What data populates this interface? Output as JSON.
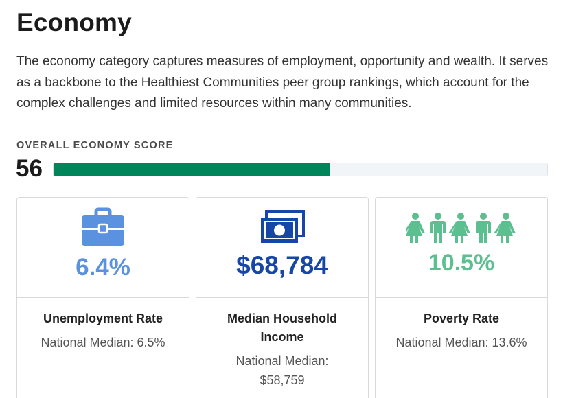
{
  "header": {
    "title": "Economy",
    "description": "The economy category captures measures of employment, opportunity and wealth. It serves as a backbone to the Healthiest Communities peer group rankings, which account for the complex challenges and limited resources within many communities."
  },
  "score": {
    "label": "OVERALL ECONOMY SCORE",
    "value": "56",
    "fraction": 0.56,
    "bar_color": "#00855a"
  },
  "cards": [
    {
      "icon": "briefcase-icon",
      "value": "6.4%",
      "color": "#5b92e0",
      "label": "Unemployment Rate",
      "sub": "National Median: 6.5%"
    },
    {
      "icon": "cash-icon",
      "value": "$68,784",
      "color": "#1546a8",
      "label": "Median Household Income",
      "sub": "National Median: $58,759"
    },
    {
      "icon": "people-icon",
      "value": "10.5%",
      "color": "#5cbf8f",
      "label": "Poverty Rate",
      "sub": "National Median: 13.6%"
    }
  ]
}
